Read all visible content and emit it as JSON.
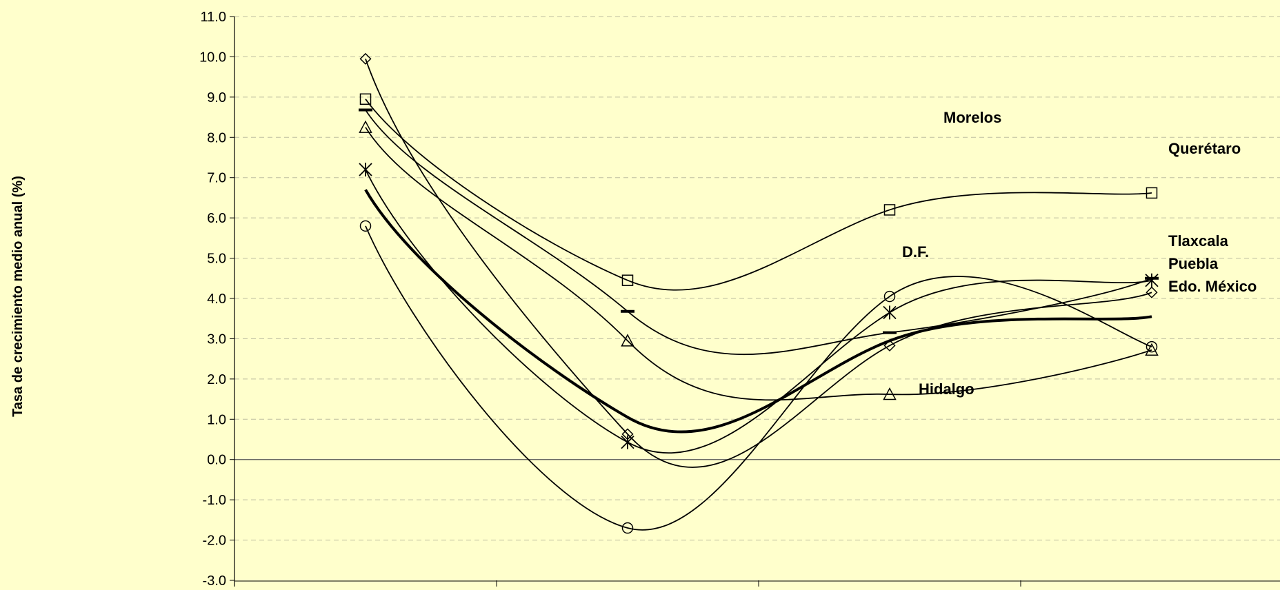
{
  "colors": {
    "background": "#FFFFCC",
    "line": "#000000",
    "grid": "#BDBDA0"
  },
  "chart_data": {
    "type": "line",
    "title": "",
    "ylabel": "Tasa de crecimiento medio anual (%)",
    "xlabel": "",
    "ylim": [
      -3.0,
      11.0
    ],
    "yticks": [
      "-3.0",
      "-2.0",
      "-1.0",
      "0.0",
      "1.0",
      "2.0",
      "3.0",
      "4.0",
      "5.0",
      "6.0",
      "7.0",
      "8.0",
      "9.0",
      "10.0",
      "11.0"
    ],
    "grid": "horizontal dashed",
    "x": [
      1,
      2,
      3,
      4
    ],
    "series": [
      {
        "name": "Querétaro",
        "marker": "square",
        "values": [
          8.95,
          4.45,
          6.2,
          6.62
        ]
      },
      {
        "name": "Morelos",
        "marker": "triangle",
        "values": [
          8.25,
          2.95,
          1.62,
          2.72
        ]
      },
      {
        "name": "D.F.",
        "marker": "circle",
        "values": [
          5.8,
          -1.7,
          4.05,
          2.8
        ]
      },
      {
        "name": "Hidalgo",
        "marker": "diamond",
        "values": [
          9.95,
          0.63,
          2.83,
          4.15
        ]
      },
      {
        "name": "Tlaxcala",
        "marker": "dash",
        "values": [
          8.68,
          3.68,
          3.15,
          4.5
        ]
      },
      {
        "name": "Puebla",
        "marker": "star",
        "values": [
          7.2,
          0.43,
          3.65,
          4.45
        ]
      },
      {
        "name": "Edo. México",
        "marker": "none",
        "bold": true,
        "values": [
          6.7,
          1.05,
          2.95,
          3.55
        ]
      }
    ],
    "annotations": [
      "Morelos",
      "Querétaro",
      "D.F.",
      "Tlaxcala",
      "Puebla",
      "Edo. México",
      "Hidalgo"
    ]
  }
}
